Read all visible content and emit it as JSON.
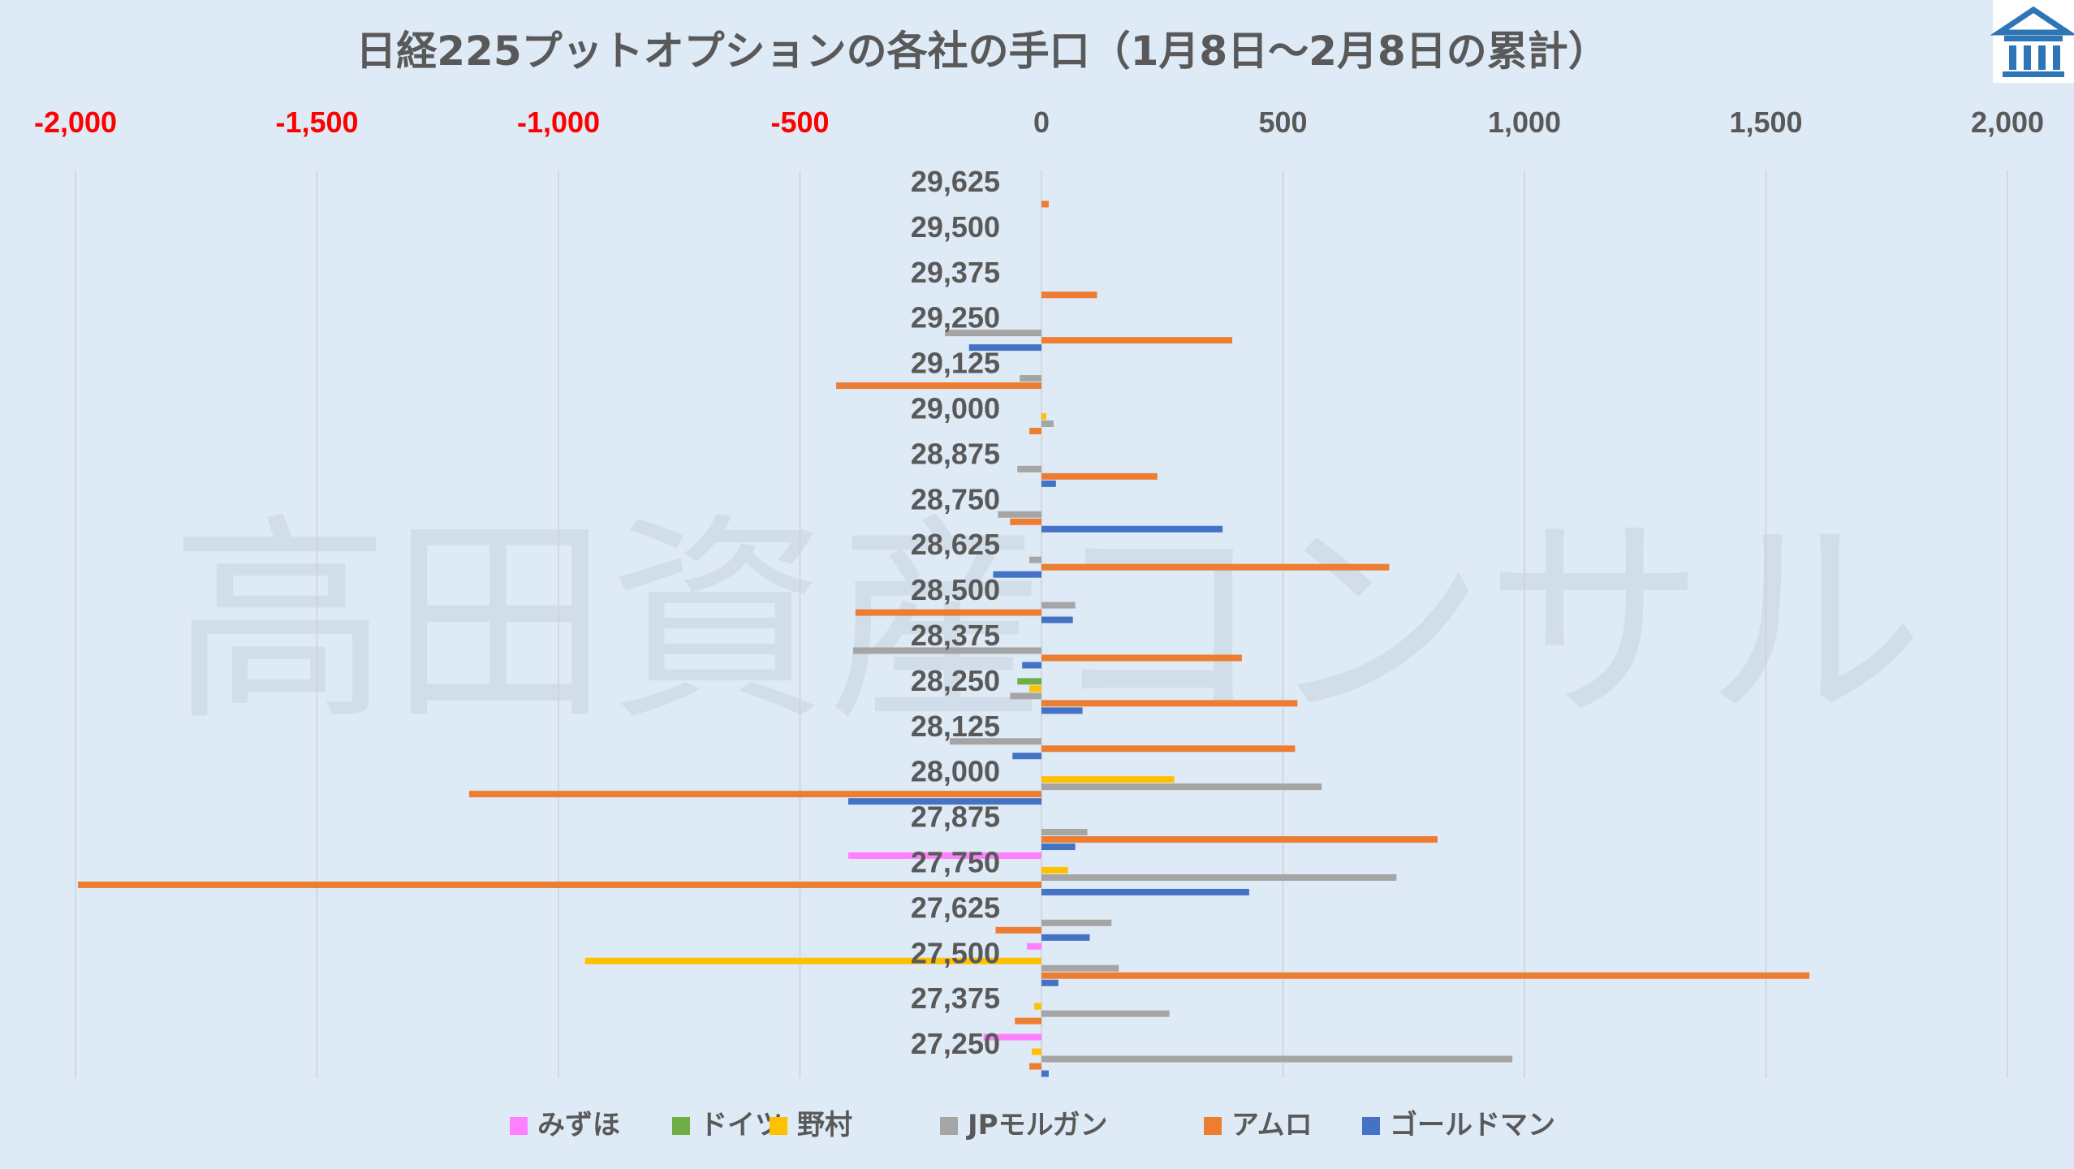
{
  "title": "日経225プットオプションの各社の手口（1月8日～2月8日の累計）",
  "watermark": "高田資産コンサル",
  "logo": {
    "name": "building-logo-icon",
    "color": "#2e75b6"
  },
  "colors": {
    "background": "#deeaf6",
    "negative_tick": "#ff0000",
    "positive_tick": "#595959",
    "grid": "#d0d8e0"
  },
  "chart_data": {
    "type": "bar",
    "orientation": "horizontal",
    "title": "日経225プットオプションの各社の手口（1月8日～2月8日の累計）",
    "xlim": [
      -2000,
      2000
    ],
    "xticks": [
      -2000,
      -1500,
      -1000,
      -500,
      0,
      500,
      1000,
      1500,
      2000
    ],
    "xtick_labels": [
      "-2,000",
      "-1,500",
      "-1,000",
      "-500",
      "0",
      "500",
      "1,000",
      "1,500",
      "2,000"
    ],
    "grid": true,
    "legend_position": "bottom",
    "categories": [
      "29,625",
      "29,500",
      "29,375",
      "29,250",
      "29,125",
      "29,000",
      "28,875",
      "28,750",
      "28,625",
      "28,500",
      "28,375",
      "28,250",
      "28,125",
      "28,000",
      "27,875",
      "27,750",
      "27,625",
      "27,500",
      "27,375",
      "27,250"
    ],
    "series": [
      {
        "name": "みずほ",
        "color": "#ff80ff",
        "values": [
          0,
          0,
          0,
          0,
          0,
          0,
          0,
          0,
          0,
          0,
          0,
          0,
          0,
          0,
          0,
          -400,
          0,
          -30,
          0,
          -120
        ]
      },
      {
        "name": "ドイツ",
        "color": "#70ad47",
        "values": [
          0,
          0,
          0,
          0,
          0,
          0,
          0,
          0,
          0,
          0,
          0,
          -50,
          0,
          0,
          0,
          0,
          0,
          0,
          0,
          0
        ]
      },
      {
        "name": "野村",
        "color": "#ffc000",
        "values": [
          0,
          0,
          0,
          0,
          0,
          10,
          0,
          0,
          0,
          0,
          0,
          -25,
          0,
          275,
          0,
          55,
          0,
          -945,
          -15,
          -20
        ]
      },
      {
        "name": "JPモルガン",
        "color": "#a5a5a5",
        "values": [
          0,
          0,
          0,
          -200,
          -45,
          25,
          -50,
          -90,
          -25,
          70,
          -390,
          -65,
          -190,
          580,
          95,
          735,
          145,
          160,
          265,
          975
        ]
      },
      {
        "name": "アムロ",
        "color": "#ed7d31",
        "values": [
          15,
          0,
          115,
          395,
          -425,
          -25,
          240,
          -65,
          720,
          -385,
          415,
          530,
          525,
          -1185,
          820,
          -1995,
          -95,
          1590,
          -55,
          -25
        ]
      },
      {
        "name": "ゴールドマン",
        "color": "#4472c4",
        "values": [
          0,
          0,
          0,
          -150,
          0,
          0,
          30,
          375,
          -100,
          65,
          -40,
          85,
          -60,
          -400,
          70,
          430,
          100,
          35,
          0,
          15
        ]
      }
    ]
  }
}
